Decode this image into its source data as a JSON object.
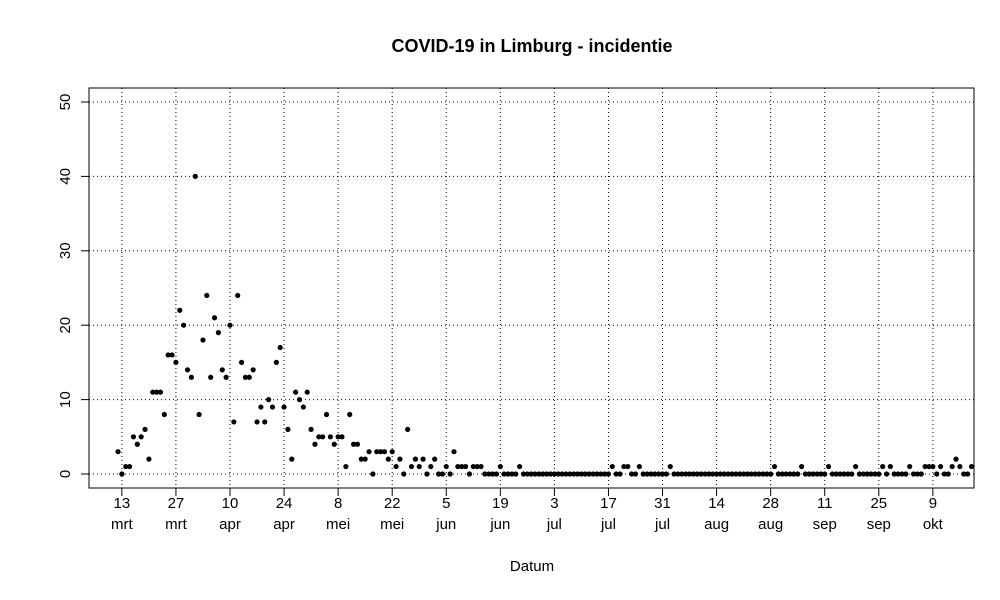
{
  "chart_data": {
    "type": "scatter",
    "title": "COVID-19 in Limburg - incidentie",
    "xlabel": "Datum",
    "ylabel": "",
    "ylim": [
      0,
      50
    ],
    "yticks": [
      0,
      10,
      20,
      30,
      40,
      50
    ],
    "grid": true,
    "grid_style": "dotted",
    "x_start_date": "2020-03-12",
    "x_end_date": "2020-10-10",
    "x_ticks": [
      {
        "day": "13",
        "month": "mrt",
        "date": "2020-03-13"
      },
      {
        "day": "27",
        "month": "mrt",
        "date": "2020-03-27"
      },
      {
        "day": "10",
        "month": "apr",
        "date": "2020-04-10"
      },
      {
        "day": "24",
        "month": "apr",
        "date": "2020-04-24"
      },
      {
        "day": "8",
        "month": "mei",
        "date": "2020-05-08"
      },
      {
        "day": "22",
        "month": "mei",
        "date": "2020-05-22"
      },
      {
        "day": "5",
        "month": "jun",
        "date": "2020-06-05"
      },
      {
        "day": "19",
        "month": "jun",
        "date": "2020-06-19"
      },
      {
        "day": "3",
        "month": "jul",
        "date": "2020-07-03"
      },
      {
        "day": "17",
        "month": "jul",
        "date": "2020-07-17"
      },
      {
        "day": "31",
        "month": "jul",
        "date": "2020-07-31"
      },
      {
        "day": "14",
        "month": "aug",
        "date": "2020-08-14"
      },
      {
        "day": "28",
        "month": "aug",
        "date": "2020-08-28"
      },
      {
        "day": "11",
        "month": "sep",
        "date": "2020-09-11"
      },
      {
        "day": "25",
        "month": "sep",
        "date": "2020-09-25"
      },
      {
        "day": "9",
        "month": "okt",
        "date": "2020-10-09"
      }
    ],
    "point_color": "#000000",
    "values": [
      3,
      0,
      1,
      1,
      5,
      4,
      5,
      6,
      2,
      11,
      11,
      11,
      8,
      16,
      16,
      15,
      22,
      20,
      14,
      13,
      40,
      8,
      18,
      24,
      13,
      21,
      19,
      14,
      13,
      20,
      7,
      24,
      15,
      13,
      13,
      14,
      7,
      9,
      7,
      10,
      9,
      15,
      17,
      9,
      6,
      2,
      11,
      10,
      9,
      11,
      6,
      4,
      5,
      5,
      8,
      5,
      4,
      5,
      5,
      1,
      8,
      4,
      4,
      2,
      2,
      3,
      0,
      3,
      3,
      3,
      2,
      3,
      1,
      2,
      0,
      6,
      1,
      2,
      1,
      2,
      0,
      1,
      2,
      0,
      0,
      1,
      0,
      3,
      1,
      1,
      1,
      0,
      1,
      1,
      1,
      0,
      0,
      0,
      0,
      1,
      0,
      0,
      0,
      0,
      1,
      0,
      0,
      0,
      0,
      0,
      0,
      0,
      0,
      0,
      0,
      0,
      0,
      0,
      0,
      0,
      0,
      0,
      0,
      0,
      0,
      0,
      0,
      0,
      1,
      0,
      0,
      1,
      1,
      0,
      0,
      1,
      0,
      0,
      0,
      0,
      0,
      0,
      0,
      1,
      0,
      0,
      0,
      0,
      0,
      0,
      0,
      0,
      0,
      0,
      0,
      0,
      0,
      0,
      0,
      0,
      0,
      0,
      0,
      0,
      0,
      0,
      0,
      0,
      0,
      0,
      1,
      0,
      0,
      0,
      0,
      0,
      0,
      1,
      0,
      0,
      0,
      0,
      0,
      0,
      1,
      0,
      0,
      0,
      0,
      0,
      0,
      1,
      0,
      0,
      0,
      0,
      0,
      0,
      1,
      0,
      1,
      0,
      0,
      0,
      0,
      1,
      0,
      0,
      0,
      1,
      1,
      1,
      0,
      1,
      0,
      0,
      1,
      2,
      1,
      0,
      0,
      1
    ]
  }
}
